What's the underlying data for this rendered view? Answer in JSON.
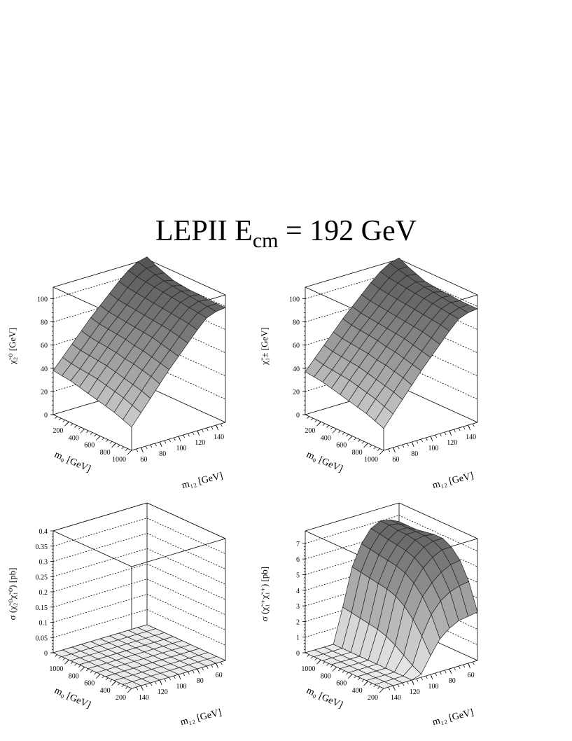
{
  "title": {
    "main": "LEPII  E",
    "sub": "cm",
    "rest": " = 192 GeV"
  },
  "chart_data": [
    {
      "type": "surface",
      "zlabel": "χ̃₂⁰  [GeV]",
      "xlabel": "m₀ [GeV]",
      "ylabel": "m₁₂ [GeV]",
      "zlim": [
        0,
        110
      ],
      "z_ticks": [
        "0",
        "20",
        "40",
        "60",
        "80",
        "100"
      ],
      "x_ticks": [
        "200",
        "400",
        "600",
        "800",
        "1000"
      ],
      "y_ticks": [
        "60",
        "80",
        "100",
        "120",
        "140"
      ],
      "m0": [
        100,
        200,
        300,
        400,
        500,
        600,
        700,
        800,
        900,
        1000
      ],
      "m12": [
        50,
        60,
        70,
        80,
        90,
        100,
        110,
        120,
        130,
        140,
        150
      ],
      "grid_z": [
        [
          38,
          47,
          56,
          65,
          74,
          82,
          90,
          98,
          105,
          110,
          112
        ],
        [
          37,
          45,
          54,
          63,
          72,
          80,
          88,
          96,
          103,
          108,
          108
        ],
        [
          36,
          44,
          53,
          62,
          71,
          79,
          87,
          95,
          102,
          106,
          105
        ],
        [
          34,
          43,
          52,
          61,
          70,
          78,
          86,
          94,
          101,
          104,
          102
        ],
        [
          32,
          42,
          51,
          60,
          69,
          77,
          85,
          93,
          100,
          103,
          101
        ],
        [
          30,
          40,
          49,
          58,
          67,
          76,
          84,
          92,
          99,
          102,
          100
        ],
        [
          28,
          38,
          47,
          57,
          66,
          75,
          83,
          91,
          98,
          101,
          100
        ],
        [
          26,
          36,
          45,
          55,
          64,
          73,
          82,
          90,
          97,
          100,
          99
        ],
        [
          23,
          33,
          43,
          53,
          62,
          71,
          80,
          89,
          96,
          99,
          99
        ],
        [
          20,
          30,
          40,
          50,
          60,
          69,
          78,
          87,
          95,
          98,
          99
        ]
      ]
    },
    {
      "type": "surface",
      "zlabel": "χ̃₁±  [GeV]",
      "xlabel": "m₀ [GeV]",
      "ylabel": "m₁₂ [GeV]",
      "zlim": [
        0,
        110
      ],
      "z_ticks": [
        "0",
        "20",
        "40",
        "60",
        "80",
        "100"
      ],
      "x_ticks": [
        "200",
        "400",
        "600",
        "800",
        "1000"
      ],
      "y_ticks": [
        "60",
        "80",
        "100",
        "120",
        "140"
      ],
      "m0": [
        100,
        200,
        300,
        400,
        500,
        600,
        700,
        800,
        900,
        1000
      ],
      "m12": [
        50,
        60,
        70,
        80,
        90,
        100,
        110,
        120,
        130,
        140,
        150
      ],
      "grid_z": [
        [
          37,
          46,
          55,
          64,
          73,
          81,
          89,
          97,
          104,
          109,
          111
        ],
        [
          36,
          44,
          53,
          62,
          71,
          79,
          87,
          95,
          102,
          107,
          107
        ],
        [
          35,
          43,
          52,
          61,
          70,
          78,
          86,
          94,
          101,
          105,
          104
        ],
        [
          33,
          42,
          51,
          60,
          69,
          77,
          85,
          93,
          100,
          103,
          101
        ],
        [
          31,
          41,
          50,
          59,
          68,
          76,
          84,
          92,
          99,
          102,
          100
        ],
        [
          29,
          39,
          48,
          57,
          66,
          75,
          83,
          91,
          98,
          101,
          99
        ],
        [
          27,
          37,
          46,
          56,
          65,
          74,
          82,
          90,
          97,
          100,
          99
        ],
        [
          25,
          35,
          44,
          54,
          63,
          72,
          81,
          89,
          96,
          99,
          98
        ],
        [
          22,
          32,
          42,
          52,
          61,
          70,
          79,
          88,
          95,
          98,
          98
        ],
        [
          19,
          29,
          39,
          49,
          59,
          68,
          77,
          86,
          94,
          97,
          98
        ]
      ]
    },
    {
      "type": "surface",
      "zlabel": "σ  (χ̃₂⁰χ̃₁⁰)   [pb]",
      "xlabel": "m₀ [GeV]",
      "ylabel": "m₁₂ [GeV]",
      "zlim": [
        0,
        0.4
      ],
      "z_ticks": [
        "0",
        "0.05",
        "0.1",
        "0.15",
        "0.2",
        "0.25",
        "0.3",
        "0.35",
        "0.4"
      ],
      "x_ticks": [
        "1000",
        "800",
        "600",
        "400",
        "200"
      ],
      "y_ticks": [
        "140",
        "120",
        "100",
        "80",
        "60"
      ],
      "m0": [
        1000,
        900,
        800,
        700,
        600,
        500,
        400,
        300,
        200,
        100
      ],
      "m12": [
        150,
        140,
        130,
        120,
        110,
        100,
        90,
        80,
        70,
        60,
        50
      ],
      "grid_z": [
        [
          0.0,
          0.0,
          0.0,
          0.0,
          0.0,
          0.0,
          0.0,
          0.0,
          0.0,
          0.0,
          0.0
        ],
        [
          0.0,
          0.0,
          0.0,
          0.0,
          0.0,
          0.0,
          0.0,
          0.0,
          0.0,
          0.0,
          0.0
        ],
        [
          0.0,
          0.0,
          0.0,
          0.0,
          0.0,
          0.0,
          0.0,
          0.0,
          0.0,
          0.0,
          0.0
        ],
        [
          0.0,
          0.0,
          0.0,
          0.0,
          0.0,
          0.0,
          0.0,
          0.0,
          0.0,
          0.0,
          0.0
        ],
        [
          0.0,
          0.0,
          0.0,
          0.0,
          0.0,
          0.0,
          0.0,
          0.0,
          0.0,
          0.0,
          0.0
        ],
        [
          0.0,
          0.0,
          0.0,
          0.0,
          0.0,
          0.0,
          0.0,
          0.0,
          0.0,
          0.0,
          0.0
        ],
        [
          0.0,
          0.0,
          0.0,
          0.0,
          0.0,
          0.0,
          0.0,
          0.0,
          0.0,
          0.0,
          0.0
        ],
        [
          0.0,
          0.0,
          0.0,
          0.0,
          0.0,
          0.0,
          0.0,
          0.0,
          0.0,
          0.0,
          0.0
        ],
        [
          0.0,
          0.0,
          0.0,
          0.0,
          0.0,
          0.0,
          0.0,
          0.0,
          0.0,
          0.0,
          0.0
        ],
        [
          0.0,
          0.0,
          0.0,
          0.0,
          0.0,
          0.0,
          0.0,
          0.0,
          0.0,
          0.0,
          0.0
        ]
      ]
    },
    {
      "type": "surface",
      "zlabel": "σ  (χ̃₁⁺χ̃₁⁺)   [pb]",
      "xlabel": "m₀ [GeV]",
      "ylabel": "m₁₂ [GeV]",
      "zlim": [
        0,
        7.8
      ],
      "z_ticks": [
        "0",
        "1",
        "2",
        "3",
        "4",
        "5",
        "6",
        "7"
      ],
      "x_ticks": [
        "1000",
        "800",
        "600",
        "400",
        "200"
      ],
      "y_ticks": [
        "140",
        "120",
        "100",
        "80",
        "60"
      ],
      "m0": [
        1000,
        900,
        800,
        700,
        600,
        500,
        400,
        300,
        200,
        100
      ],
      "m12": [
        150,
        140,
        130,
        120,
        110,
        100,
        90,
        80,
        70,
        60,
        50
      ],
      "grid_z": [
        [
          0.0,
          0.0,
          0.0,
          0.0,
          2.2,
          4.6,
          5.9,
          6.7,
          7.0,
          6.9,
          6.6
        ],
        [
          0.0,
          0.0,
          0.0,
          0.0,
          2.1,
          4.5,
          5.8,
          6.6,
          7.0,
          6.9,
          6.6
        ],
        [
          0.0,
          0.0,
          0.0,
          0.0,
          2.0,
          4.4,
          5.7,
          6.5,
          6.9,
          6.9,
          6.6
        ],
        [
          0.0,
          0.0,
          0.0,
          0.0,
          1.9,
          4.3,
          5.6,
          6.4,
          6.9,
          6.9,
          6.7
        ],
        [
          0.0,
          0.0,
          0.0,
          0.0,
          1.8,
          4.2,
          5.5,
          6.3,
          6.8,
          6.9,
          6.8
        ],
        [
          0.0,
          0.0,
          0.0,
          0.0,
          1.6,
          4.0,
          5.3,
          6.1,
          6.6,
          6.8,
          6.8
        ],
        [
          0.0,
          0.0,
          0.0,
          0.0,
          1.3,
          3.6,
          4.9,
          5.7,
          6.2,
          6.5,
          6.5
        ],
        [
          0.0,
          0.0,
          0.0,
          0.0,
          0.9,
          3.0,
          4.3,
          5.0,
          5.5,
          5.8,
          5.9
        ],
        [
          0.0,
          0.0,
          0.0,
          0.0,
          0.5,
          2.2,
          3.4,
          4.1,
          4.5,
          4.7,
          4.8
        ],
        [
          0.0,
          0.0,
          0.0,
          0.0,
          0.2,
          1.2,
          2.1,
          2.6,
          2.9,
          3.0,
          3.1
        ]
      ]
    }
  ]
}
